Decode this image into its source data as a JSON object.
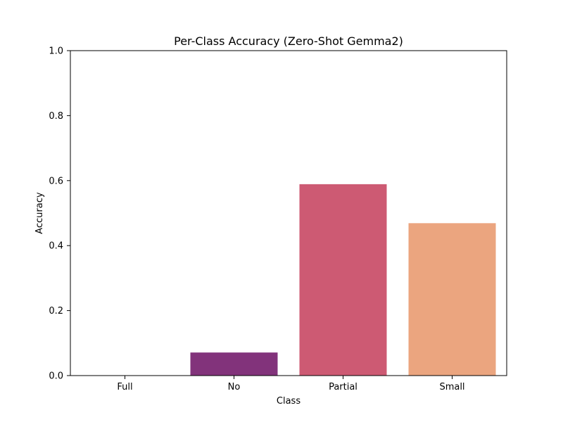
{
  "chart_data": {
    "type": "bar",
    "title": "Per-Class Accuracy (Zero-Shot Gemma2)",
    "xlabel": "Class",
    "ylabel": "Accuracy",
    "categories": [
      "Full",
      "No",
      "Partial",
      "Small"
    ],
    "values": [
      0.0,
      0.071,
      0.589,
      0.469
    ],
    "colors": [
      "#35193e",
      "#82337b",
      "#cd5a73",
      "#eba57f"
    ],
    "ylim": [
      0.0,
      1.0
    ],
    "yticks": [
      0.0,
      0.2,
      0.4,
      0.6,
      0.8,
      1.0
    ],
    "ytick_labels": [
      "0.0",
      "0.2",
      "0.4",
      "0.6",
      "0.8",
      "1.0"
    ],
    "grid": false,
    "legend": "none"
  }
}
